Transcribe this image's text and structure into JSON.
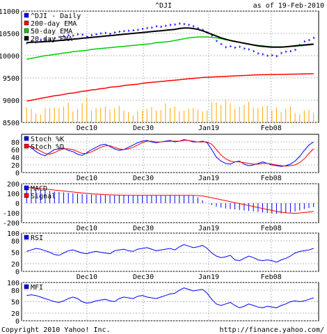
{
  "header": {
    "symbol": "^DJI",
    "as_of": "as of 19-Feb-2010"
  },
  "footer": {
    "copyright": "Copyright 2010 Yahoo! Inc.",
    "url": "http://finance.yahoo.com/"
  },
  "x_tick_labels": [
    "Dec10",
    "Dec30",
    "Jan19",
    "Feb08"
  ],
  "colors": {
    "price_bars": "#0000ff",
    "ema200": "#ff0000",
    "ema50": "#00cc00",
    "ema20": "#000000",
    "volume": "#ffa500",
    "stoch_k": "#0000ff",
    "stoch_d": "#ff0000",
    "macd": "#0000ff",
    "signal": "#ff0000",
    "rsi": "#0000ff",
    "mfi": "#0000ff",
    "grid": "#bbbbbb"
  },
  "chart_data": [
    {
      "type": "line",
      "title": "^DJI - Daily",
      "ylim": [
        8500,
        11000
      ],
      "yticks": [
        "11000",
        "10500",
        "10000",
        "9500",
        "9000",
        "8500"
      ],
      "legend_placement": "top-left",
      "series": [
        {
          "name": "^DJI - Daily",
          "style": "ohlc",
          "values": [
            10280,
            10320,
            10300,
            10340,
            10370,
            10360,
            10390,
            10420,
            10440,
            10460,
            10450,
            10480,
            10470,
            10430,
            10460,
            10480,
            10500,
            10510,
            10490,
            10520,
            10540,
            10550,
            10560,
            10570,
            10580,
            10600,
            10620,
            10630,
            10660,
            10650,
            10670,
            10690,
            10700,
            10720,
            10710,
            10690,
            10660,
            10620,
            10580,
            10520,
            10450,
            10330,
            10260,
            10190,
            10210,
            10180,
            10200,
            10160,
            10140,
            10100,
            10050,
            10030,
            10000,
            10010,
            9990,
            10060,
            10090,
            10100,
            10130,
            10240,
            10320,
            10350,
            10400
          ]
        },
        {
          "name": "200-day EMA",
          "values": [
            8980,
            9000,
            9020,
            9040,
            9060,
            9080,
            9100,
            9110,
            9130,
            9150,
            9160,
            9180,
            9200,
            9210,
            9230,
            9240,
            9260,
            9270,
            9290,
            9300,
            9310,
            9330,
            9340,
            9350,
            9360,
            9380,
            9390,
            9400,
            9410,
            9420,
            9430,
            9440,
            9450,
            9460,
            9470,
            9480,
            9490,
            9500,
            9510,
            9515,
            9520,
            9525,
            9530,
            9535,
            9540,
            9545,
            9550,
            9555,
            9560,
            9565,
            9570,
            9572,
            9574,
            9576,
            9578,
            9580,
            9582,
            9584,
            9586,
            9588,
            9590,
            9592,
            9595
          ]
        },
        {
          "name": "50-day EMA",
          "values": [
            9920,
            9940,
            9960,
            9980,
            10000,
            10010,
            10030,
            10040,
            10060,
            10070,
            10090,
            10100,
            10110,
            10120,
            10140,
            10150,
            10160,
            10170,
            10180,
            10190,
            10200,
            10210,
            10220,
            10230,
            10240,
            10250,
            10260,
            10270,
            10290,
            10300,
            10310,
            10320,
            10340,
            10360,
            10380,
            10400,
            10410,
            10420,
            10420,
            10420,
            10410,
            10400,
            10380,
            10360,
            10340,
            10320,
            10300,
            10280,
            10260,
            10240,
            10230,
            10220,
            10210,
            10200,
            10200,
            10200,
            10200,
            10210,
            10210,
            10220,
            10230,
            10240,
            10250
          ]
        },
        {
          "name": "20-day EMA",
          "values": [
            10290,
            10300,
            10305,
            10310,
            10315,
            10320,
            10330,
            10340,
            10350,
            10360,
            10370,
            10380,
            10390,
            10400,
            10410,
            10420,
            10430,
            10440,
            10450,
            10460,
            10470,
            10480,
            10490,
            10500,
            10510,
            10520,
            10530,
            10540,
            10550,
            10560,
            10570,
            10580,
            10590,
            10610,
            10620,
            10620,
            10610,
            10590,
            10560,
            10520,
            10480,
            10440,
            10400,
            10370,
            10340,
            10320,
            10300,
            10280,
            10260,
            10240,
            10220,
            10210,
            10200,
            10190,
            10190,
            10190,
            10200,
            10210,
            10220,
            10230,
            10240,
            10250,
            10260
          ]
        }
      ],
      "volume": [
        38,
        34,
        22,
        20,
        36,
        36,
        38,
        36,
        40,
        50,
        28,
        34,
        48,
        62,
        30,
        36,
        38,
        40,
        32,
        36,
        42,
        30,
        26,
        18,
        28,
        30,
        34,
        38,
        30,
        32,
        48,
        36,
        40,
        28,
        30,
        34,
        36,
        32,
        28,
        30,
        50,
        50,
        44,
        58,
        48,
        34,
        40,
        44,
        52,
        38,
        36,
        40,
        42,
        30,
        38,
        26,
        34,
        40,
        24,
        20,
        30,
        32,
        24
      ]
    },
    {
      "type": "line",
      "ylim": [
        0,
        100
      ],
      "yticks": [
        "80",
        "60",
        "40",
        "20",
        "0"
      ],
      "legend_placement": "top-left",
      "series": [
        {
          "name": "Stoch %K",
          "values": [
            72,
            65,
            55,
            48,
            44,
            52,
            60,
            62,
            64,
            58,
            55,
            48,
            45,
            52,
            60,
            66,
            72,
            74,
            68,
            62,
            58,
            60,
            66,
            72,
            78,
            82,
            84,
            80,
            78,
            80,
            82,
            84,
            80,
            82,
            86,
            84,
            80,
            80,
            82,
            78,
            60,
            40,
            30,
            24,
            22,
            28,
            30,
            22,
            18,
            20,
            24,
            28,
            24,
            20,
            18,
            16,
            18,
            22,
            30,
            42,
            58,
            72,
            80
          ]
        },
        {
          "name": "Stoch %D",
          "values": [
            70,
            68,
            62,
            56,
            50,
            48,
            52,
            58,
            62,
            62,
            60,
            55,
            50,
            50,
            54,
            60,
            66,
            70,
            70,
            66,
            62,
            60,
            62,
            66,
            72,
            78,
            82,
            82,
            80,
            80,
            81,
            82,
            82,
            82,
            84,
            84,
            82,
            80,
            80,
            80,
            74,
            60,
            46,
            36,
            30,
            28,
            28,
            26,
            24,
            22,
            22,
            24,
            24,
            22,
            20,
            18,
            17,
            18,
            20,
            26,
            36,
            50,
            62
          ]
        }
      ]
    },
    {
      "type": "line",
      "ylim": [
        -200,
        200
      ],
      "yticks": [
        "200",
        "100",
        "0",
        "-100",
        "-200"
      ],
      "legend_placement": "top-left",
      "series": [
        {
          "name": "MACD",
          "style": "histogram",
          "values": [
            150,
            145,
            140,
            135,
            130,
            125,
            120,
            115,
            110,
            105,
            100,
            95,
            92,
            90,
            88,
            86,
            84,
            82,
            80,
            80,
            80,
            80,
            80,
            80,
            80,
            80,
            80,
            80,
            80,
            80,
            80,
            80,
            80,
            80,
            80,
            80,
            78,
            60,
            30,
            0,
            -20,
            -35,
            -45,
            -55,
            -60,
            -65,
            -70,
            -75,
            -80,
            -85,
            -90,
            -95,
            -100,
            -105,
            -108,
            -105,
            -100,
            -95,
            -85,
            -75,
            -60,
            -50,
            -40
          ]
        },
        {
          "name": "Signal",
          "values": [
            160,
            158,
            155,
            150,
            145,
            140,
            135,
            130,
            125,
            120,
            115,
            110,
            105,
            100,
            96,
            93,
            90,
            88,
            86,
            84,
            83,
            82,
            81,
            80,
            80,
            80,
            80,
            80,
            80,
            80,
            80,
            80,
            80,
            80,
            80,
            80,
            80,
            78,
            74,
            66,
            56,
            46,
            36,
            26,
            16,
            6,
            -4,
            -14,
            -24,
            -34,
            -44,
            -54,
            -64,
            -74,
            -84,
            -92,
            -98,
            -102,
            -104,
            -100,
            -96,
            -90,
            -84
          ]
        }
      ]
    },
    {
      "type": "line",
      "ylim": [
        0,
        100
      ],
      "yticks": [
        "100",
        "80",
        "50",
        "20",
        "0"
      ],
      "legend_placement": "top-left",
      "series": [
        {
          "name": "RSI",
          "values": [
            52,
            56,
            60,
            58,
            54,
            50,
            44,
            42,
            48,
            54,
            56,
            52,
            48,
            46,
            50,
            52,
            50,
            48,
            46,
            54,
            56,
            58,
            54,
            52,
            58,
            60,
            62,
            58,
            54,
            56,
            58,
            60,
            56,
            64,
            70,
            66,
            62,
            64,
            68,
            60,
            48,
            40,
            36,
            38,
            42,
            30,
            28,
            34,
            40,
            36,
            30,
            28,
            30,
            28,
            24,
            30,
            34,
            40,
            48,
            52,
            54,
            56,
            60
          ]
        }
      ]
    },
    {
      "type": "line",
      "ylim": [
        0,
        100
      ],
      "yticks": [
        "100",
        "80",
        "50",
        "20",
        "0"
      ],
      "legend_placement": "top-left",
      "series": [
        {
          "name": "MFI",
          "values": [
            66,
            68,
            66,
            62,
            58,
            54,
            50,
            48,
            52,
            58,
            62,
            58,
            50,
            46,
            48,
            52,
            54,
            56,
            52,
            50,
            58,
            62,
            60,
            58,
            64,
            66,
            62,
            60,
            58,
            62,
            66,
            70,
            72,
            80,
            86,
            82,
            78,
            80,
            82,
            72,
            56,
            44,
            40,
            44,
            48,
            40,
            34,
            38,
            44,
            40,
            36,
            34,
            38,
            36,
            34,
            40,
            44,
            50,
            52,
            50,
            52,
            56,
            60
          ]
        }
      ]
    }
  ]
}
